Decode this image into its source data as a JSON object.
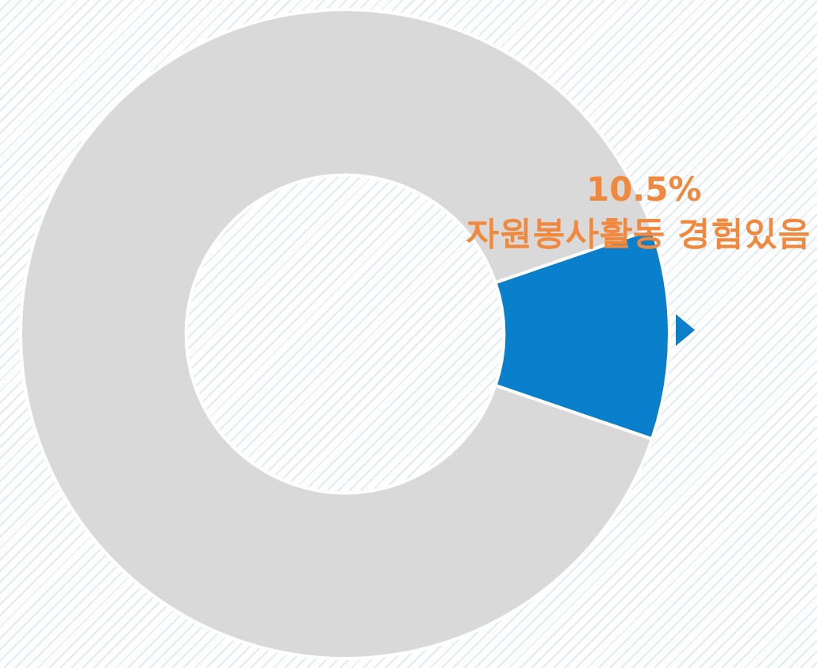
{
  "chart_data": {
    "type": "donut",
    "categories": [
      "자원봉사활동 경험있음",
      null
    ],
    "values": [
      10.5,
      89.5
    ],
    "colors": [
      "#0a7fcc",
      "#d9d9d9"
    ],
    "value_labels": [
      "10.5%",
      null
    ],
    "legend": false
  }
}
